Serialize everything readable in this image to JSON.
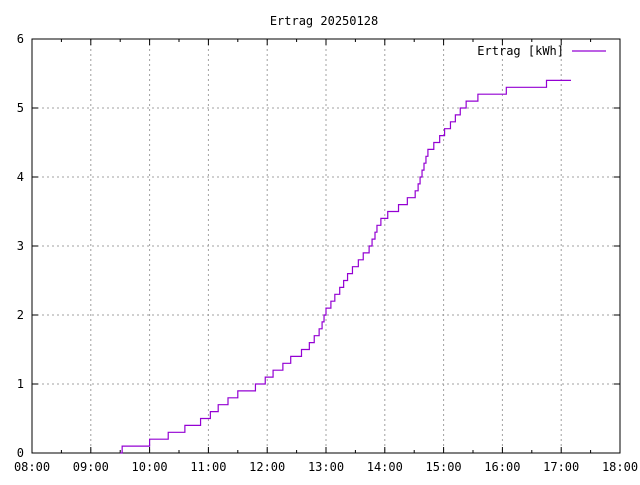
{
  "chart_data": {
    "type": "line",
    "title": "Ertrag 20250128",
    "xlabel": "",
    "ylabel": "",
    "xlim": [
      "08:00",
      "18:00"
    ],
    "ylim": [
      0,
      6
    ],
    "x_ticks": [
      "08:00",
      "09:00",
      "10:00",
      "11:00",
      "12:00",
      "13:00",
      "14:00",
      "15:00",
      "16:00",
      "17:00",
      "18:00"
    ],
    "y_ticks": [
      "0",
      "1",
      "2",
      "3",
      "4",
      "5",
      "6"
    ],
    "grid": true,
    "legend_position": "top-right",
    "step": true,
    "series": [
      {
        "name": "Ertrag [kWh]",
        "color": "#9400d3",
        "points": [
          [
            "09:30",
            0
          ],
          [
            "09:32",
            0.1
          ],
          [
            "10:00",
            0.2
          ],
          [
            "10:19",
            0.3
          ],
          [
            "10:36",
            0.4
          ],
          [
            "10:52",
            0.5
          ],
          [
            "11:02",
            0.6
          ],
          [
            "11:10",
            0.7
          ],
          [
            "11:20",
            0.8
          ],
          [
            "11:30",
            0.9
          ],
          [
            "11:48",
            1.0
          ],
          [
            "11:58",
            1.1
          ],
          [
            "12:06",
            1.2
          ],
          [
            "12:16",
            1.3
          ],
          [
            "12:24",
            1.4
          ],
          [
            "12:35",
            1.5
          ],
          [
            "12:43",
            1.6
          ],
          [
            "12:48",
            1.7
          ],
          [
            "12:53",
            1.8
          ],
          [
            "12:56",
            1.9
          ],
          [
            "12:58",
            2.0
          ],
          [
            "13:00",
            2.1
          ],
          [
            "13:05",
            2.2
          ],
          [
            "13:09",
            2.3
          ],
          [
            "13:14",
            2.4
          ],
          [
            "13:18",
            2.5
          ],
          [
            "13:22",
            2.6
          ],
          [
            "13:27",
            2.7
          ],
          [
            "13:33",
            2.8
          ],
          [
            "13:38",
            2.9
          ],
          [
            "13:44",
            3.0
          ],
          [
            "13:47",
            3.1
          ],
          [
            "13:50",
            3.2
          ],
          [
            "13:52",
            3.3
          ],
          [
            "13:56",
            3.4
          ],
          [
            "14:03",
            3.5
          ],
          [
            "14:14",
            3.6
          ],
          [
            "14:23",
            3.7
          ],
          [
            "14:31",
            3.8
          ],
          [
            "14:34",
            3.9
          ],
          [
            "14:36",
            4.0
          ],
          [
            "14:38",
            4.1
          ],
          [
            "14:40",
            4.2
          ],
          [
            "14:42",
            4.3
          ],
          [
            "14:44",
            4.4
          ],
          [
            "14:50",
            4.5
          ],
          [
            "14:56",
            4.6
          ],
          [
            "15:01",
            4.7
          ],
          [
            "15:07",
            4.8
          ],
          [
            "15:12",
            4.9
          ],
          [
            "15:17",
            5.0
          ],
          [
            "15:23",
            5.1
          ],
          [
            "15:35",
            5.2
          ],
          [
            "16:04",
            5.3
          ],
          [
            "16:45",
            5.4
          ],
          [
            "17:10",
            5.4
          ]
        ]
      }
    ]
  }
}
